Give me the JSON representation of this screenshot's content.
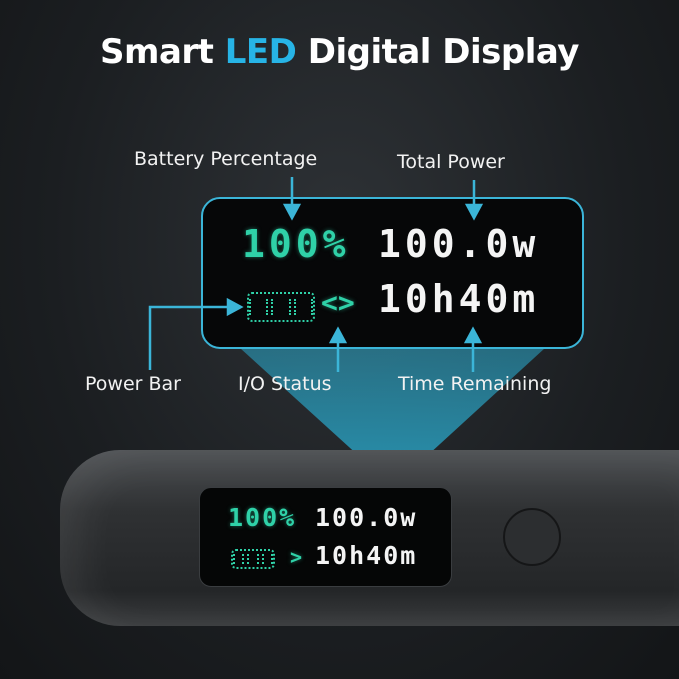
{
  "title": {
    "prefix": "Smart ",
    "accent": "LED",
    "suffix": " Digital Display"
  },
  "labels": {
    "battery_percentage": "Battery Percentage",
    "total_power": "Total Power",
    "power_bar": "Power Bar",
    "io_status": "I/O Status",
    "time_remaining": "Time Remaining"
  },
  "display": {
    "percentage": "100%",
    "power": "100.0w",
    "time": "10h40m",
    "io_symbol_zoomed": "<>",
    "io_symbol_device": ">",
    "battery_level": 1.0
  },
  "colors": {
    "accent": "#27b4e6",
    "lcd_green": "#2fd1a8",
    "lcd_white": "#f4f4f4",
    "callout": "#3bb5d8"
  }
}
